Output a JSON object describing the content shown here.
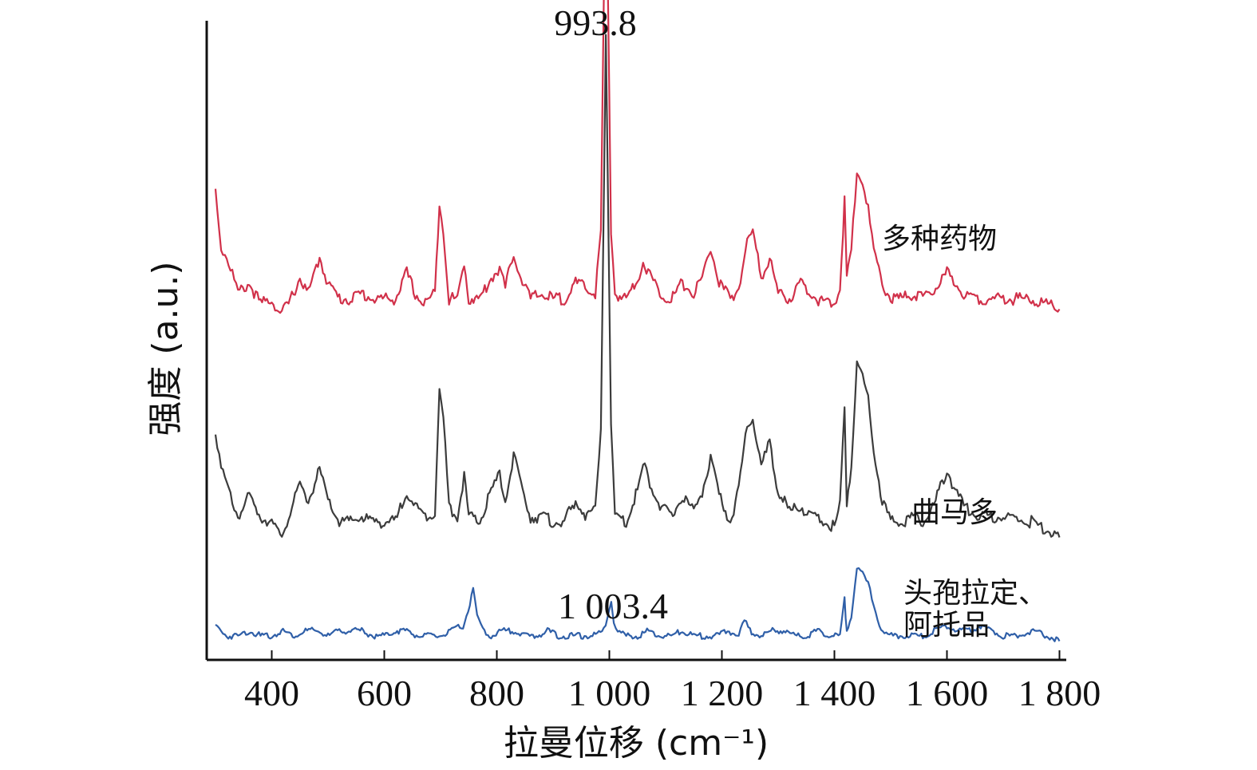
{
  "chart_data": {
    "type": "line",
    "xlabel": "拉曼位移 (cm⁻¹)",
    "ylabel": "强度 (a.u.)",
    "xlim": [
      290,
      1800
    ],
    "xticks": [
      {
        "value": 400,
        "label": "400"
      },
      {
        "value": 600,
        "label": "600"
      },
      {
        "value": 800,
        "label": "800"
      },
      {
        "value": 1000,
        "label": "1 000"
      },
      {
        "value": 1200,
        "label": "1 200"
      },
      {
        "value": 1400,
        "label": "1 400"
      },
      {
        "value": 1600,
        "label": "1 600"
      },
      {
        "value": 1800,
        "label": "1 800"
      }
    ],
    "y_ticks_shown": false,
    "legend": "inline labels at right",
    "series": [
      {
        "name": "多种药物",
        "color": "#d1314a",
        "baseline": 0.67,
        "points": [
          [
            300,
            0.88
          ],
          [
            310,
            0.77
          ],
          [
            320,
            0.75
          ],
          [
            330,
            0.72
          ],
          [
            340,
            0.68
          ],
          [
            360,
            0.7
          ],
          [
            380,
            0.66
          ],
          [
            400,
            0.67
          ],
          [
            415,
            0.64
          ],
          [
            430,
            0.66
          ],
          [
            450,
            0.71
          ],
          [
            465,
            0.68
          ],
          [
            485,
            0.75
          ],
          [
            500,
            0.7
          ],
          [
            520,
            0.67
          ],
          [
            540,
            0.67
          ],
          [
            560,
            0.68
          ],
          [
            580,
            0.67
          ],
          [
            600,
            0.67
          ],
          [
            620,
            0.67
          ],
          [
            640,
            0.72
          ],
          [
            655,
            0.68
          ],
          [
            670,
            0.66
          ],
          [
            690,
            0.68
          ],
          [
            698,
            0.86
          ],
          [
            705,
            0.8
          ],
          [
            715,
            0.67
          ],
          [
            730,
            0.67
          ],
          [
            742,
            0.74
          ],
          [
            750,
            0.67
          ],
          [
            770,
            0.67
          ],
          [
            790,
            0.71
          ],
          [
            805,
            0.73
          ],
          [
            815,
            0.69
          ],
          [
            830,
            0.76
          ],
          [
            840,
            0.72
          ],
          [
            860,
            0.67
          ],
          [
            880,
            0.68
          ],
          [
            900,
            0.67
          ],
          [
            920,
            0.67
          ],
          [
            940,
            0.7
          ],
          [
            960,
            0.69
          ],
          [
            975,
            0.68
          ],
          [
            985,
            0.8
          ],
          [
            993.8,
            1.56
          ],
          [
            1003,
            0.8
          ],
          [
            1010,
            0.68
          ],
          [
            1030,
            0.67
          ],
          [
            1050,
            0.71
          ],
          [
            1060,
            0.74
          ],
          [
            1075,
            0.71
          ],
          [
            1090,
            0.68
          ],
          [
            1110,
            0.67
          ],
          [
            1130,
            0.7
          ],
          [
            1150,
            0.68
          ],
          [
            1165,
            0.71
          ],
          [
            1180,
            0.77
          ],
          [
            1195,
            0.7
          ],
          [
            1215,
            0.67
          ],
          [
            1230,
            0.69
          ],
          [
            1245,
            0.78
          ],
          [
            1255,
            0.8
          ],
          [
            1270,
            0.71
          ],
          [
            1285,
            0.75
          ],
          [
            1300,
            0.68
          ],
          [
            1320,
            0.67
          ],
          [
            1340,
            0.7
          ],
          [
            1360,
            0.68
          ],
          [
            1380,
            0.66
          ],
          [
            1400,
            0.66
          ],
          [
            1410,
            0.69
          ],
          [
            1418,
            0.86
          ],
          [
            1422,
            0.71
          ],
          [
            1430,
            0.76
          ],
          [
            1440,
            0.92
          ],
          [
            1450,
            0.9
          ],
          [
            1460,
            0.84
          ],
          [
            1470,
            0.76
          ],
          [
            1485,
            0.7
          ],
          [
            1500,
            0.67
          ],
          [
            1520,
            0.67
          ],
          [
            1540,
            0.68
          ],
          [
            1560,
            0.67
          ],
          [
            1580,
            0.69
          ],
          [
            1600,
            0.72
          ],
          [
            1615,
            0.7
          ],
          [
            1630,
            0.68
          ],
          [
            1660,
            0.67
          ],
          [
            1700,
            0.67
          ],
          [
            1750,
            0.67
          ],
          [
            1800,
            0.65
          ]
        ]
      },
      {
        "name": "曲马多",
        "color": "#3c3c3c",
        "baseline": 0.24,
        "points": [
          [
            300,
            0.42
          ],
          [
            310,
            0.34
          ],
          [
            320,
            0.31
          ],
          [
            330,
            0.28
          ],
          [
            340,
            0.25
          ],
          [
            360,
            0.29
          ],
          [
            380,
            0.25
          ],
          [
            400,
            0.24
          ],
          [
            415,
            0.21
          ],
          [
            430,
            0.25
          ],
          [
            450,
            0.31
          ],
          [
            465,
            0.28
          ],
          [
            485,
            0.34
          ],
          [
            500,
            0.28
          ],
          [
            520,
            0.24
          ],
          [
            540,
            0.24
          ],
          [
            560,
            0.25
          ],
          [
            580,
            0.24
          ],
          [
            600,
            0.24
          ],
          [
            620,
            0.24
          ],
          [
            640,
            0.3
          ],
          [
            655,
            0.27
          ],
          [
            670,
            0.25
          ],
          [
            690,
            0.26
          ],
          [
            698,
            0.49
          ],
          [
            705,
            0.44
          ],
          [
            715,
            0.27
          ],
          [
            730,
            0.25
          ],
          [
            742,
            0.33
          ],
          [
            750,
            0.25
          ],
          [
            770,
            0.24
          ],
          [
            790,
            0.3
          ],
          [
            805,
            0.33
          ],
          [
            815,
            0.28
          ],
          [
            830,
            0.37
          ],
          [
            840,
            0.32
          ],
          [
            860,
            0.25
          ],
          [
            880,
            0.25
          ],
          [
            900,
            0.24
          ],
          [
            920,
            0.24
          ],
          [
            940,
            0.28
          ],
          [
            960,
            0.25
          ],
          [
            975,
            0.26
          ],
          [
            985,
            0.42
          ],
          [
            993.8,
            1.19
          ],
          [
            1003,
            0.42
          ],
          [
            1010,
            0.25
          ],
          [
            1030,
            0.24
          ],
          [
            1050,
            0.3
          ],
          [
            1060,
            0.35
          ],
          [
            1075,
            0.31
          ],
          [
            1090,
            0.27
          ],
          [
            1110,
            0.25
          ],
          [
            1130,
            0.29
          ],
          [
            1150,
            0.26
          ],
          [
            1165,
            0.3
          ],
          [
            1180,
            0.36
          ],
          [
            1195,
            0.29
          ],
          [
            1215,
            0.24
          ],
          [
            1230,
            0.3
          ],
          [
            1245,
            0.43
          ],
          [
            1255,
            0.44
          ],
          [
            1270,
            0.35
          ],
          [
            1285,
            0.39
          ],
          [
            1300,
            0.3
          ],
          [
            1320,
            0.26
          ],
          [
            1340,
            0.27
          ],
          [
            1360,
            0.25
          ],
          [
            1380,
            0.24
          ],
          [
            1400,
            0.23
          ],
          [
            1410,
            0.27
          ],
          [
            1418,
            0.47
          ],
          [
            1422,
            0.28
          ],
          [
            1430,
            0.35
          ],
          [
            1440,
            0.54
          ],
          [
            1450,
            0.52
          ],
          [
            1460,
            0.48
          ],
          [
            1470,
            0.38
          ],
          [
            1485,
            0.28
          ],
          [
            1500,
            0.24
          ],
          [
            1520,
            0.24
          ],
          [
            1540,
            0.25
          ],
          [
            1560,
            0.24
          ],
          [
            1580,
            0.28
          ],
          [
            1600,
            0.34
          ],
          [
            1615,
            0.3
          ],
          [
            1630,
            0.27
          ],
          [
            1660,
            0.25
          ],
          [
            1700,
            0.25
          ],
          [
            1750,
            0.24
          ],
          [
            1800,
            0.21
          ]
        ]
      },
      {
        "name": "头孢拉定、\n阿托品",
        "color": "#2f5fa8",
        "baseline": 0.02,
        "points": [
          [
            300,
            0.04
          ],
          [
            310,
            0.03
          ],
          [
            320,
            0.02
          ],
          [
            340,
            0.02
          ],
          [
            360,
            0.03
          ],
          [
            380,
            0.02
          ],
          [
            400,
            0.02
          ],
          [
            420,
            0.03
          ],
          [
            440,
            0.02
          ],
          [
            460,
            0.03
          ],
          [
            480,
            0.03
          ],
          [
            500,
            0.02
          ],
          [
            520,
            0.03
          ],
          [
            540,
            0.03
          ],
          [
            560,
            0.03
          ],
          [
            580,
            0.02
          ],
          [
            600,
            0.02
          ],
          [
            620,
            0.03
          ],
          [
            640,
            0.03
          ],
          [
            660,
            0.02
          ],
          [
            680,
            0.02
          ],
          [
            700,
            0.02
          ],
          [
            720,
            0.03
          ],
          [
            740,
            0.04
          ],
          [
            752,
            0.08
          ],
          [
            758,
            0.11
          ],
          [
            765,
            0.06
          ],
          [
            775,
            0.03
          ],
          [
            790,
            0.02
          ],
          [
            810,
            0.03
          ],
          [
            830,
            0.03
          ],
          [
            850,
            0.02
          ],
          [
            870,
            0.02
          ],
          [
            890,
            0.03
          ],
          [
            910,
            0.02
          ],
          [
            930,
            0.02
          ],
          [
            950,
            0.02
          ],
          [
            970,
            0.02
          ],
          [
            990,
            0.03
          ],
          [
            997,
            0.06
          ],
          [
            1003.4,
            0.09
          ],
          [
            1008,
            0.05
          ],
          [
            1015,
            0.03
          ],
          [
            1030,
            0.02
          ],
          [
            1050,
            0.02
          ],
          [
            1070,
            0.03
          ],
          [
            1090,
            0.02
          ],
          [
            1110,
            0.02
          ],
          [
            1130,
            0.03
          ],
          [
            1150,
            0.02
          ],
          [
            1170,
            0.02
          ],
          [
            1190,
            0.02
          ],
          [
            1210,
            0.03
          ],
          [
            1230,
            0.02
          ],
          [
            1240,
            0.05
          ],
          [
            1250,
            0.03
          ],
          [
            1270,
            0.02
          ],
          [
            1290,
            0.03
          ],
          [
            1310,
            0.03
          ],
          [
            1330,
            0.02
          ],
          [
            1350,
            0.02
          ],
          [
            1370,
            0.03
          ],
          [
            1390,
            0.02
          ],
          [
            1410,
            0.02
          ],
          [
            1418,
            0.09
          ],
          [
            1422,
            0.03
          ],
          [
            1430,
            0.06
          ],
          [
            1440,
            0.15
          ],
          [
            1450,
            0.14
          ],
          [
            1460,
            0.12
          ],
          [
            1470,
            0.08
          ],
          [
            1480,
            0.04
          ],
          [
            1495,
            0.02
          ],
          [
            1520,
            0.02
          ],
          [
            1540,
            0.02
          ],
          [
            1560,
            0.02
          ],
          [
            1580,
            0.03
          ],
          [
            1600,
            0.04
          ],
          [
            1620,
            0.03
          ],
          [
            1640,
            0.03
          ],
          [
            1660,
            0.04
          ],
          [
            1680,
            0.03
          ],
          [
            1700,
            0.02
          ],
          [
            1720,
            0.02
          ],
          [
            1750,
            0.03
          ],
          [
            1780,
            0.02
          ],
          [
            1800,
            0.01
          ]
        ]
      }
    ],
    "annotations": [
      {
        "text": "993.8",
        "x": 993.8,
        "series": "多种药物"
      },
      {
        "text": "1 003.4",
        "x": 1003.4,
        "series": "头孢拉定、\n阿托品"
      }
    ]
  }
}
